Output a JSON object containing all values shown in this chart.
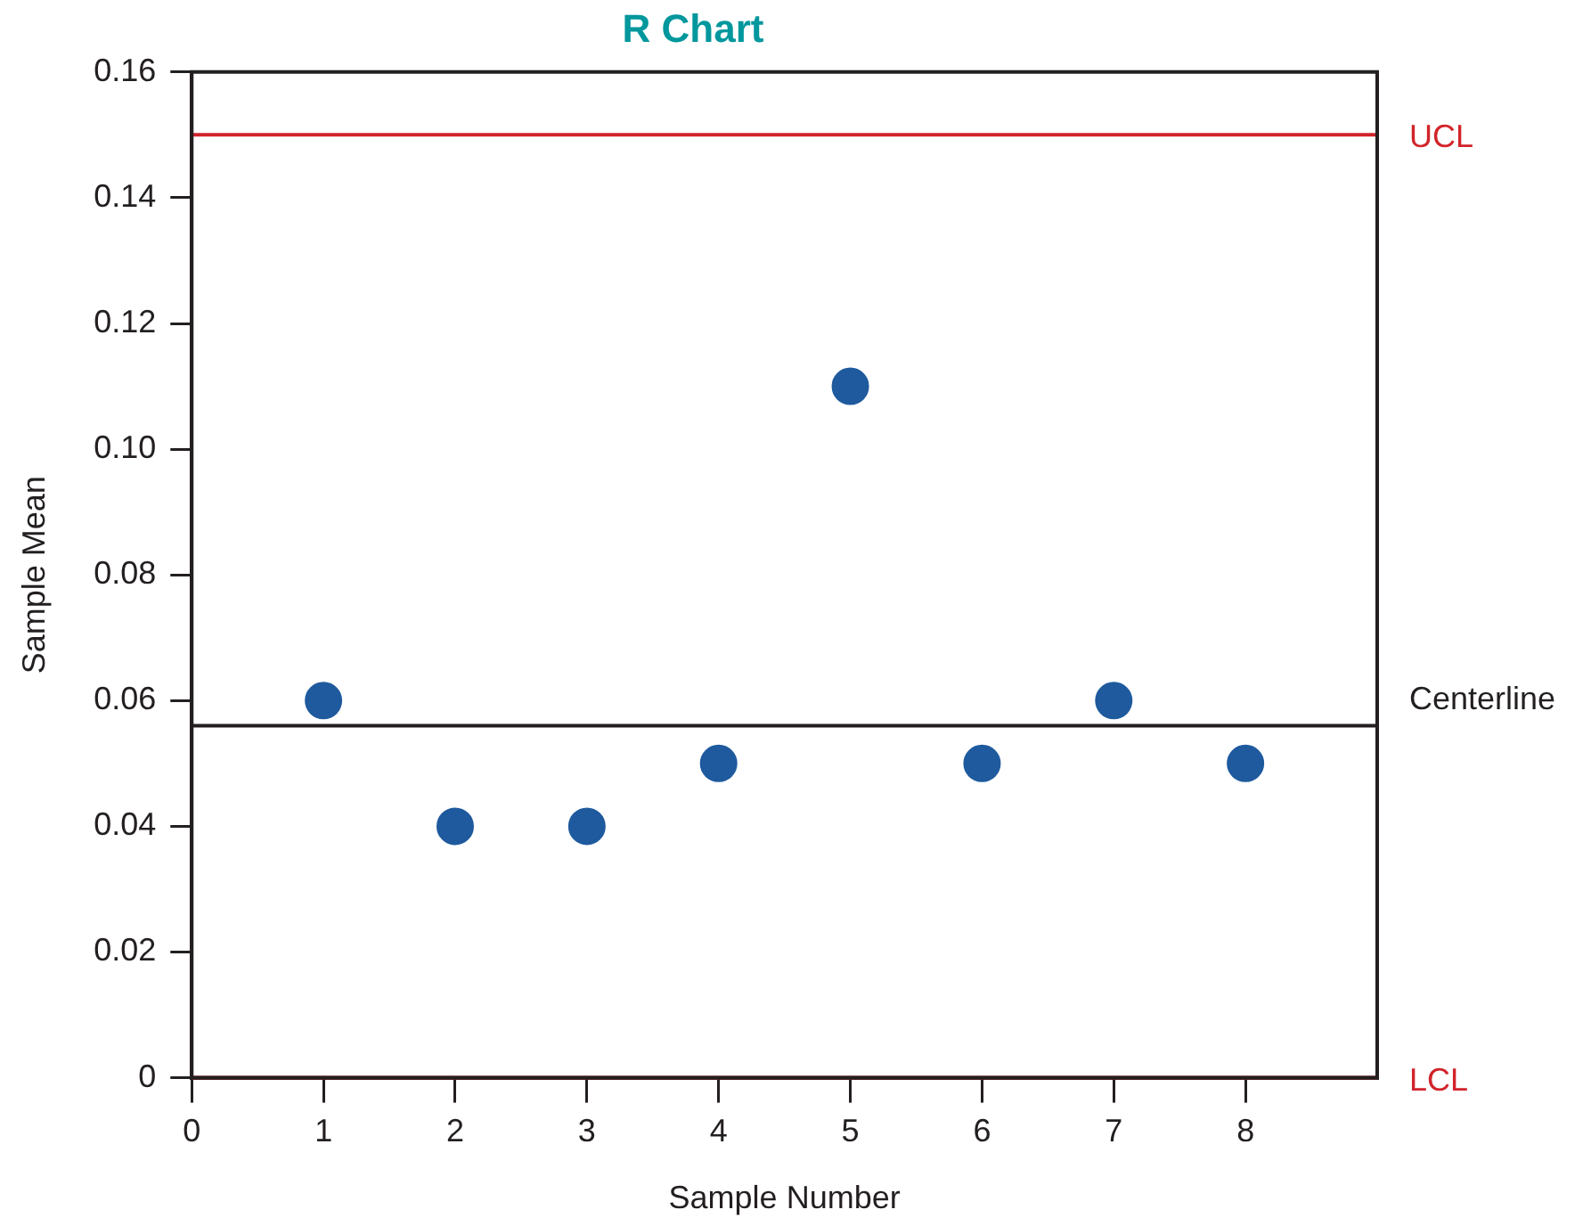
{
  "chart_data": {
    "type": "scatter",
    "title": "R Chart",
    "xlabel": "Sample Number",
    "ylabel": "Sample Mean",
    "x": [
      1,
      2,
      3,
      4,
      5,
      6,
      7,
      8
    ],
    "series": [
      {
        "color": "#1f5a9e",
        "values": [
          0.06,
          0.04,
          0.04,
          0.05,
          0.11,
          0.05,
          0.06,
          0.05
        ]
      }
    ],
    "xlim": [
      0,
      9
    ],
    "xticks": [
      0,
      1,
      2,
      3,
      4,
      5,
      6,
      7,
      8
    ],
    "ylim": [
      0,
      0.16
    ],
    "yticks": [
      0,
      0.02,
      0.04,
      0.06,
      0.08,
      {
        "value": 0.1,
        "label": "0.10"
      },
      0.12,
      0.14,
      0.16
    ],
    "ref_lines": [
      {
        "axis": "y",
        "value": 0.15,
        "label": "UCL",
        "color": "#d2232a"
      },
      {
        "axis": "y",
        "value": 0.056,
        "label": "Centerline",
        "color": "#231f20"
      },
      {
        "axis": "y",
        "value": 0,
        "label": "LCL",
        "color": "#d2232a"
      }
    ],
    "grid": false,
    "legend": false,
    "marker": "circle"
  }
}
